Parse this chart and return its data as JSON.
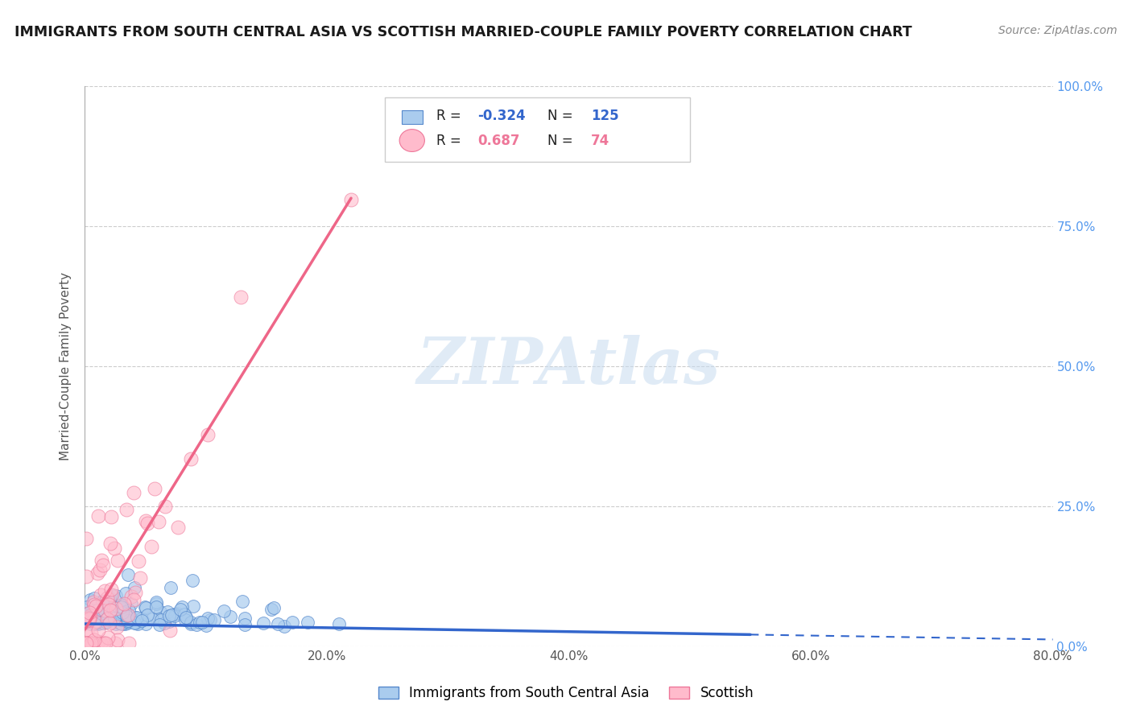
{
  "title": "IMMIGRANTS FROM SOUTH CENTRAL ASIA VS SCOTTISH MARRIED-COUPLE FAMILY POVERTY CORRELATION CHART",
  "source": "Source: ZipAtlas.com",
  "xlabel_legend": "Immigrants from South Central Asia",
  "ylabel": "Married-Couple Family Poverty",
  "xlim": [
    0.0,
    80.0
  ],
  "ylim": [
    0.0,
    100.0
  ],
  "blue_R": -0.324,
  "blue_N": 125,
  "pink_R": 0.687,
  "pink_N": 74,
  "blue_fill_color": "#AACCEE",
  "blue_edge_color": "#5588CC",
  "pink_fill_color": "#FFBBCC",
  "pink_edge_color": "#EE7799",
  "blue_line_color": "#3366CC",
  "pink_line_color": "#EE6688",
  "watermark_color": "#C8DCF0",
  "grid_color": "#CCCCCC",
  "bg_color": "#FFFFFF",
  "right_tick_color": "#5599EE",
  "legend_box_color": "#CCCCCC"
}
